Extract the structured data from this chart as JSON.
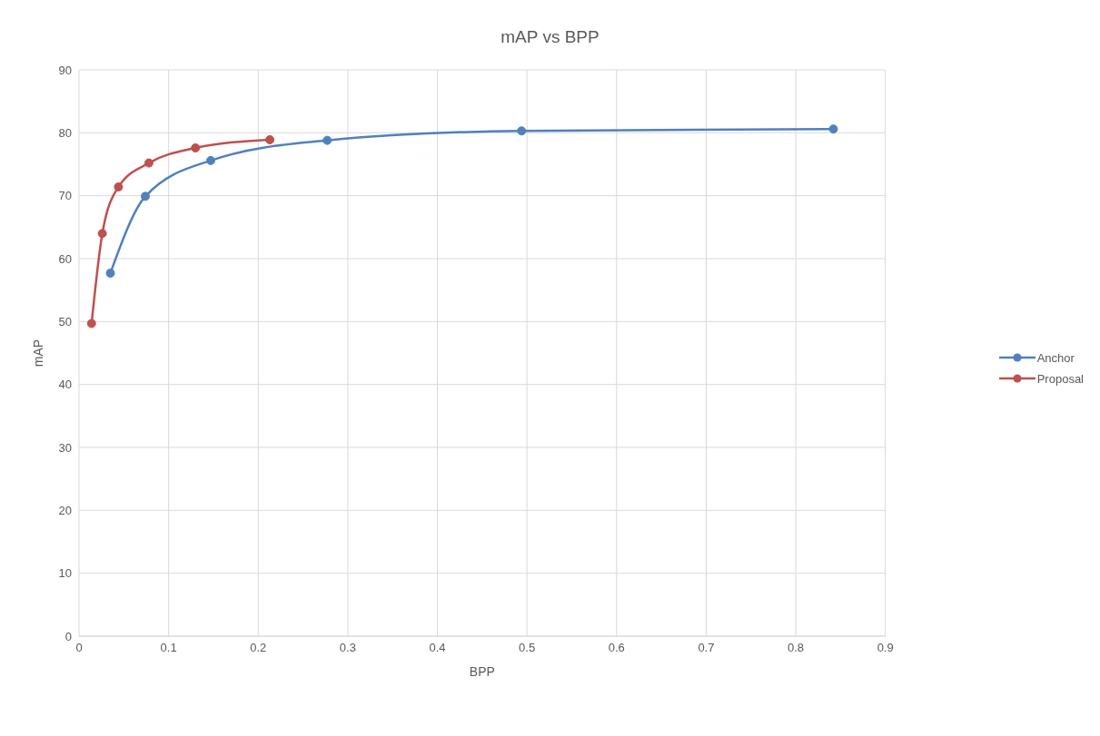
{
  "chart_data": {
    "type": "line",
    "title": "mAP vs BPP",
    "xlabel": "BPP",
    "ylabel": "mAP",
    "series": [
      {
        "name": "Anchor",
        "color": "#4f81bd",
        "x": [
          0.035,
          0.074,
          0.147,
          0.277,
          0.494,
          0.842
        ],
        "values": [
          57.7,
          69.9,
          75.6,
          78.8,
          80.3,
          80.6
        ]
      },
      {
        "name": "Proposal",
        "color": "#c0504d",
        "x": [
          0.014,
          0.026,
          0.044,
          0.078,
          0.13,
          0.213
        ],
        "values": [
          49.7,
          64.0,
          71.4,
          75.2,
          77.6,
          78.9
        ]
      }
    ],
    "xlim": [
      0,
      0.9
    ],
    "xticks": [
      0,
      0.1,
      0.2,
      0.3,
      0.4,
      0.5,
      0.6,
      0.7,
      0.8,
      0.9
    ],
    "ylim": [
      0,
      90
    ],
    "yticks": [
      0,
      10,
      20,
      30,
      40,
      50,
      60,
      70,
      80,
      90
    ],
    "grid": true,
    "legend": "right",
    "marker": "circle",
    "line_style": "solid"
  }
}
